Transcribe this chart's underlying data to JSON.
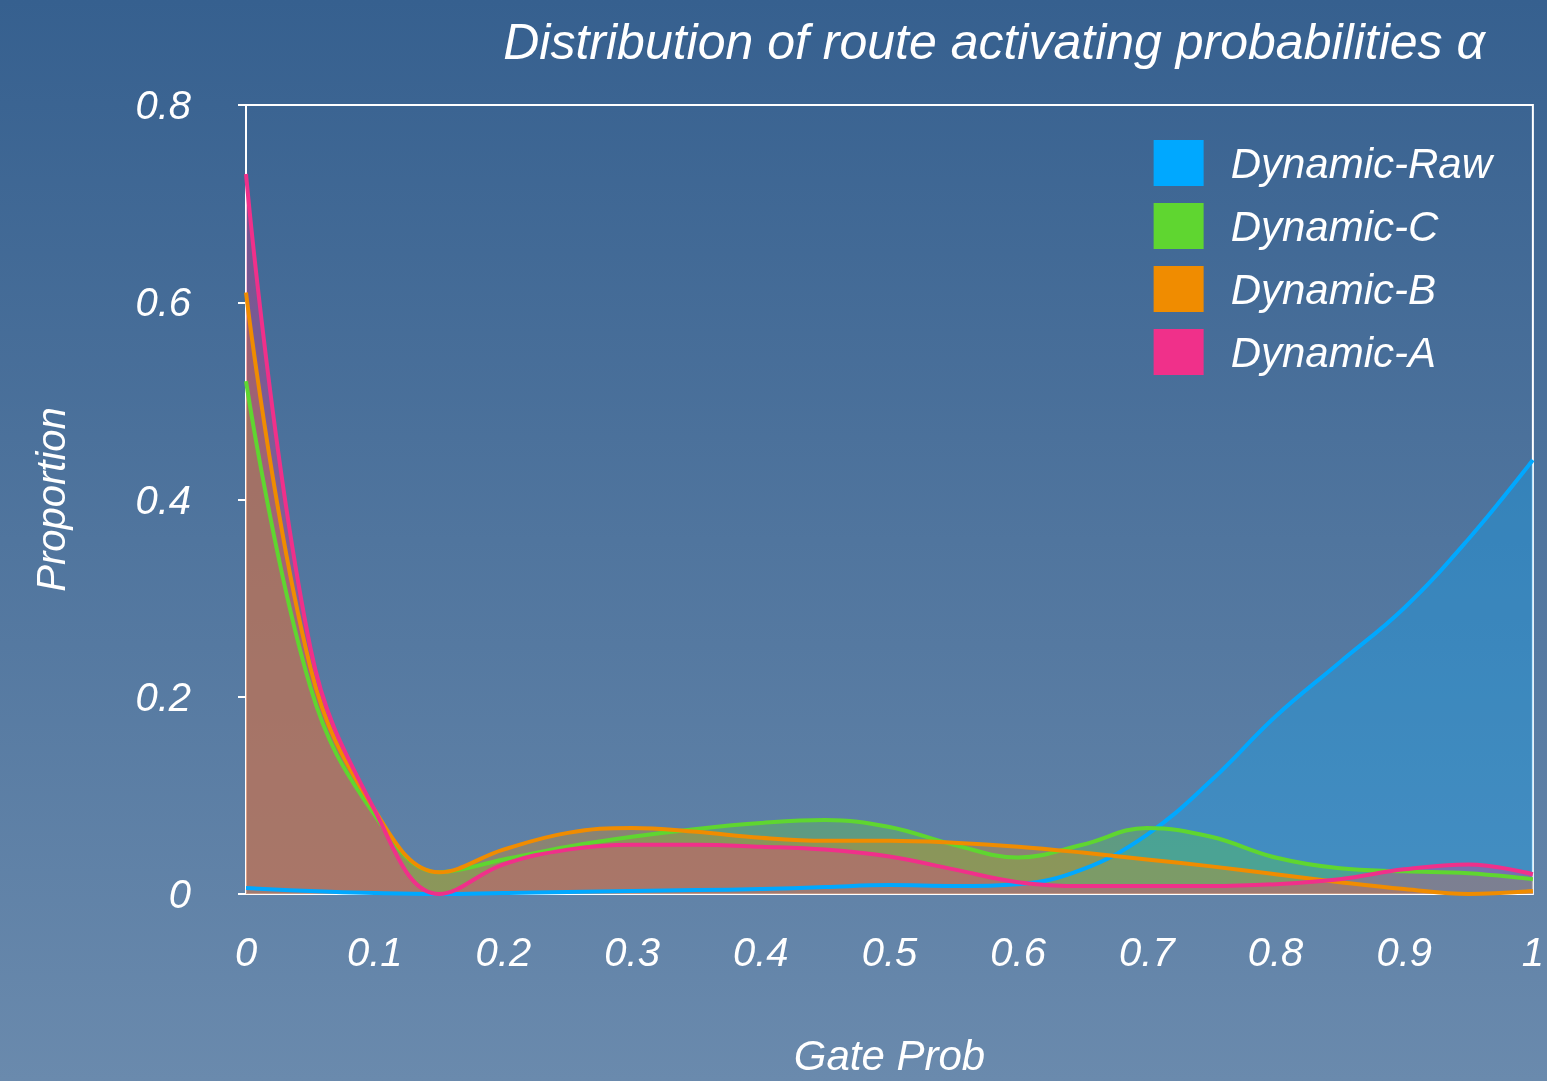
{
  "chart_data": {
    "type": "area",
    "title": "Distribution of route activating probabilities α",
    "xlabel": "Gate Prob",
    "ylabel": "Proportion",
    "x": [
      0,
      0.05,
      0.1,
      0.15,
      0.2,
      0.25,
      0.3,
      0.35,
      0.4,
      0.45,
      0.5,
      0.55,
      0.6,
      0.65,
      0.7,
      0.75,
      0.8,
      0.85,
      0.9,
      0.95,
      1
    ],
    "series": [
      {
        "name": "Dynamic-Raw",
        "color": "#00a8ff",
        "values": [
          0.006,
          0.003,
          0.001,
          0,
          0.001,
          0.002,
          0.003,
          0.004,
          0.005,
          0.007,
          0.009,
          0.008,
          0.01,
          0.025,
          0.06,
          0.115,
          0.18,
          0.235,
          0.29,
          0.36,
          0.44
        ]
      },
      {
        "name": "Dynamic-C",
        "color": "#5fd630",
        "values": [
          0.52,
          0.21,
          0.08,
          0.022,
          0.035,
          0.048,
          0.058,
          0.066,
          0.072,
          0.075,
          0.068,
          0.05,
          0.037,
          0.05,
          0.067,
          0.058,
          0.037,
          0.026,
          0.023,
          0.021,
          0.015
        ]
      },
      {
        "name": "Dynamic-B",
        "color": "#f08c00",
        "values": [
          0.61,
          0.23,
          0.085,
          0.022,
          0.045,
          0.062,
          0.067,
          0.063,
          0.057,
          0.054,
          0.054,
          0.052,
          0.048,
          0.042,
          0.035,
          0.028,
          0.02,
          0.012,
          0.005,
          0,
          0.003
        ]
      },
      {
        "name": "Dynamic-A",
        "color": "#f0308a",
        "values": [
          0.73,
          0.25,
          0.085,
          0,
          0.03,
          0.045,
          0.05,
          0.05,
          0.048,
          0.045,
          0.038,
          0.025,
          0.012,
          0.008,
          0.008,
          0.008,
          0.01,
          0.015,
          0.025,
          0.03,
          0.02
        ]
      }
    ],
    "xlim": [
      0,
      1
    ],
    "xticks": [
      0,
      0.1,
      0.2,
      0.3,
      0.4,
      0.5,
      0.6,
      0.7,
      0.8,
      0.9,
      1
    ],
    "ylim": [
      0,
      0.8
    ],
    "yticks": [
      0,
      0.2,
      0.4,
      0.6,
      0.8
    ],
    "legend": "top right",
    "grid": false,
    "marker": "none"
  }
}
